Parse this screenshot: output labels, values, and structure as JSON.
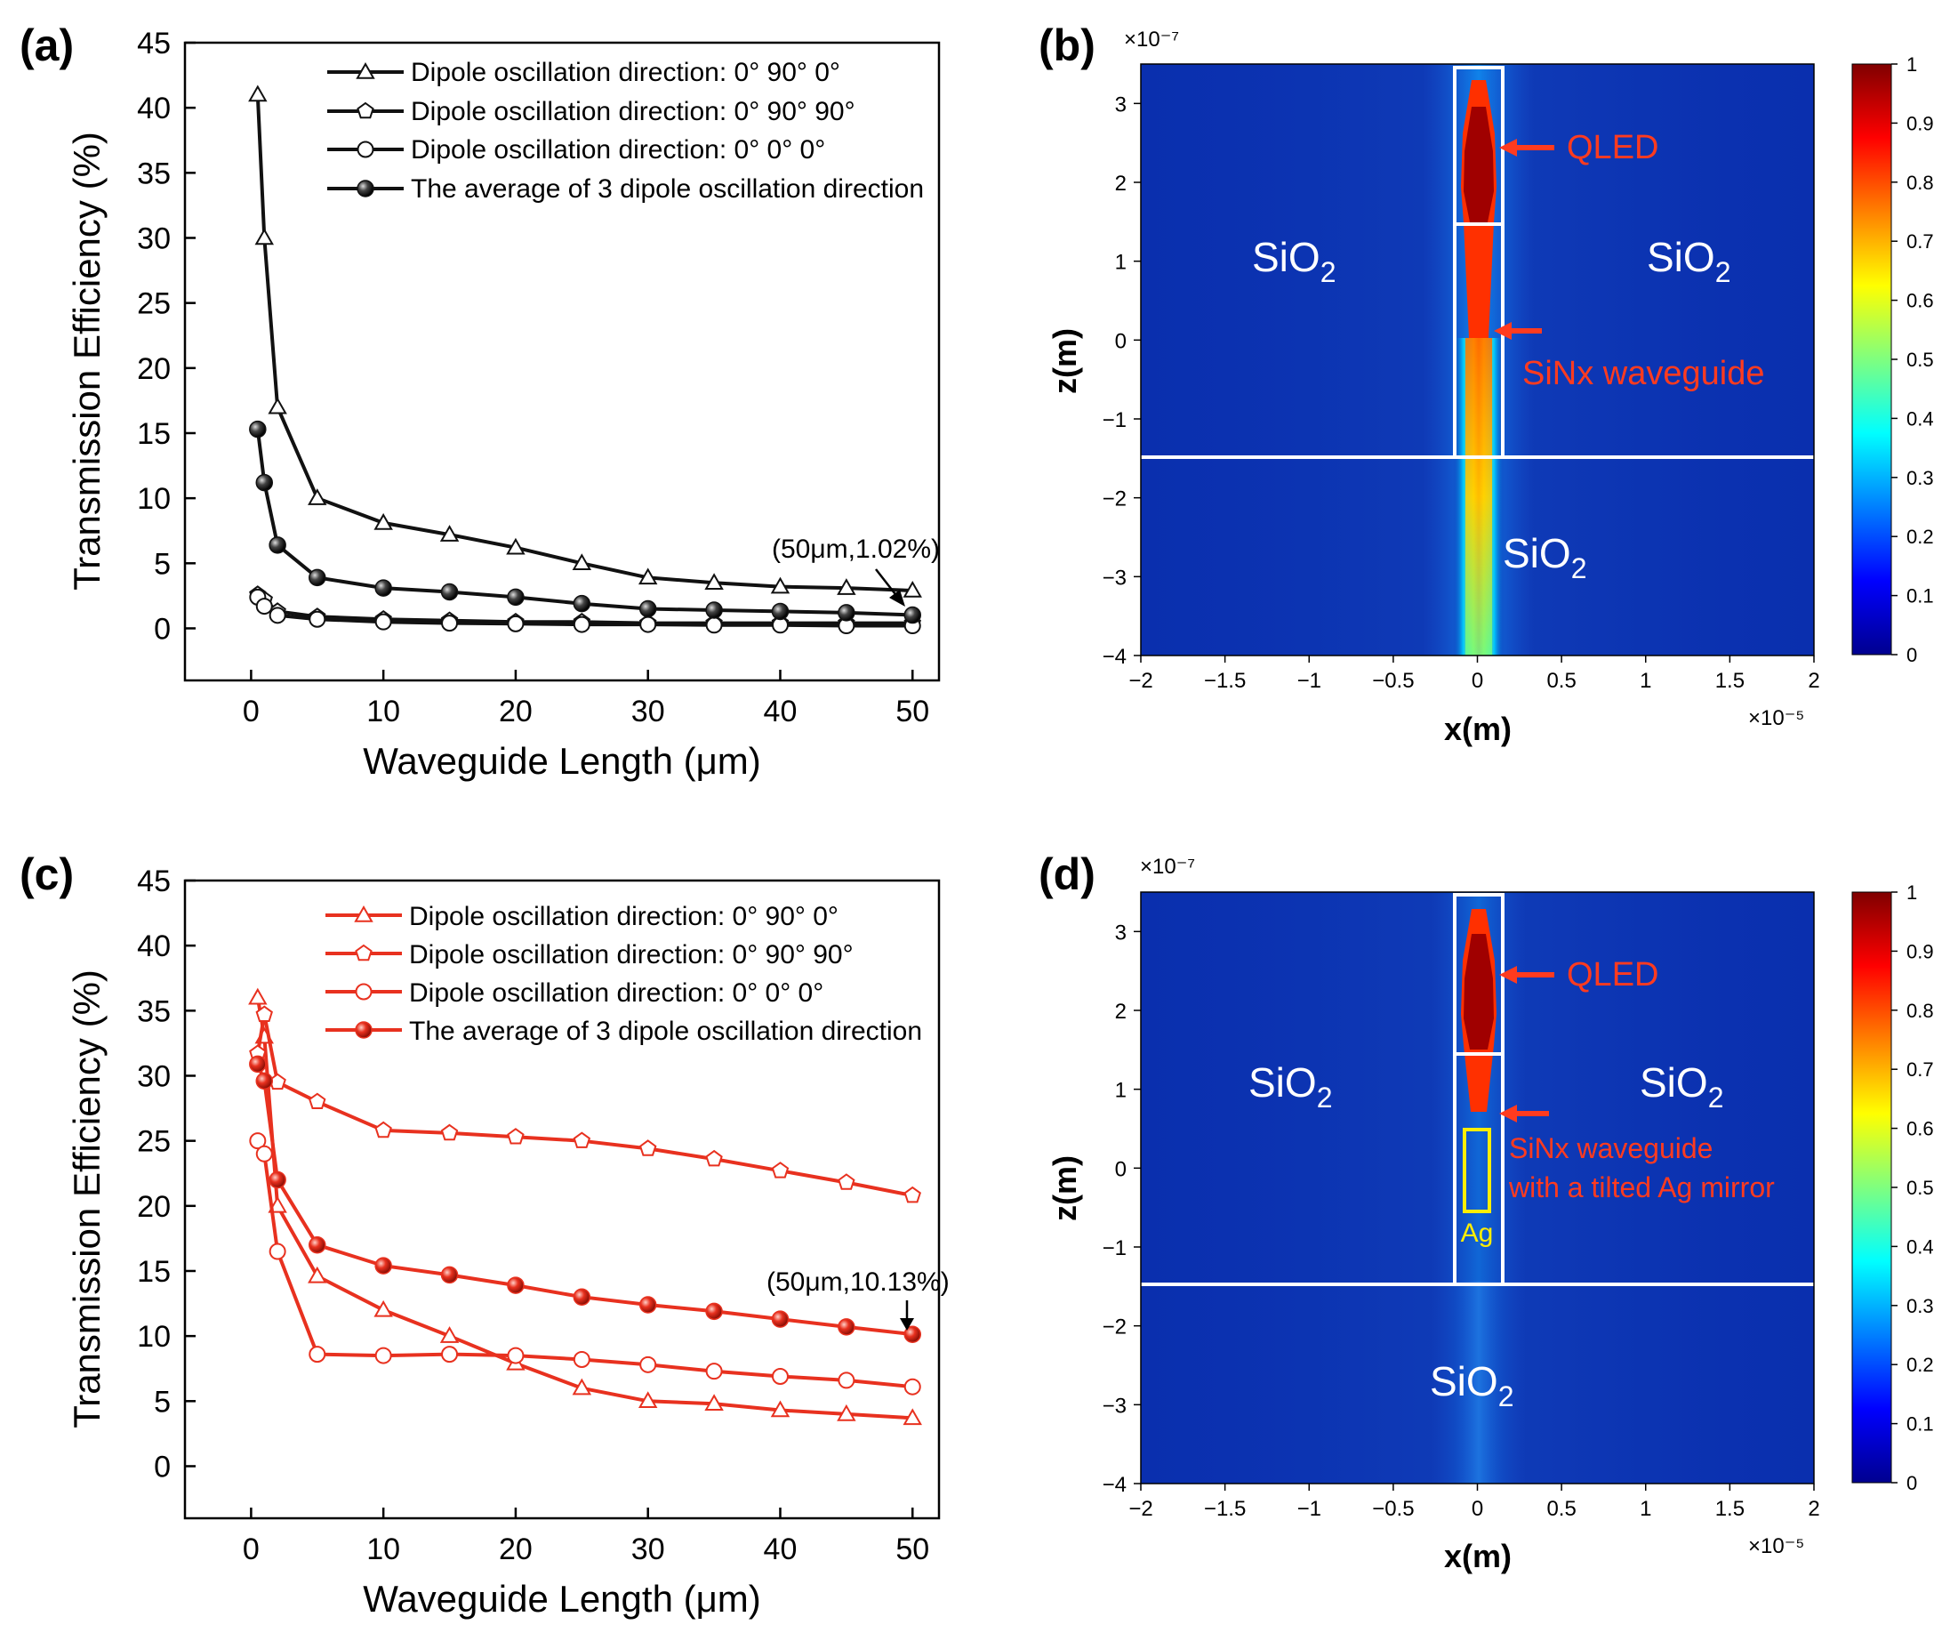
{
  "panel_labels": {
    "a": "(a)",
    "b": "(b)",
    "c": "(c)",
    "d": "(d)"
  },
  "colors": {
    "black_series": "#111111",
    "red_series": "#e8311f",
    "map_bg": "#0a2fae",
    "callout": "#ff3b1f",
    "ag_box": "#ffee00"
  },
  "chart_data": [
    {
      "id": "a",
      "type": "line",
      "xlabel": "Waveguide Length (μm)",
      "ylabel": "Transmission Efficiency (%)",
      "xlim": [
        -5,
        52
      ],
      "ylim": [
        -4,
        45
      ],
      "xticks": [
        0,
        10,
        20,
        30,
        40,
        50
      ],
      "yticks": [
        0,
        5,
        10,
        15,
        20,
        25,
        30,
        35,
        40,
        45
      ],
      "x": [
        0.5,
        1,
        2,
        5,
        10,
        15,
        20,
        25,
        30,
        35,
        40,
        45,
        50
      ],
      "series": [
        {
          "name": "Dipole oscillation direction: 0° 90° 0°",
          "marker": "triangle",
          "values": [
            41,
            30,
            17,
            10,
            8.1,
            7.2,
            6.2,
            5,
            3.9,
            3.5,
            3.2,
            3.1,
            2.9
          ]
        },
        {
          "name": "Dipole oscillation direction: 0° 90° 90°",
          "marker": "pentagon",
          "values": [
            2.6,
            2.2,
            1.3,
            0.9,
            0.7,
            0.6,
            0.5,
            0.5,
            0.4,
            0.4,
            0.4,
            0.4,
            0.4
          ]
        },
        {
          "name": "Dipole oscillation direction: 0° 0° 0°",
          "marker": "circle",
          "values": [
            2.4,
            1.7,
            1.0,
            0.7,
            0.5,
            0.4,
            0.35,
            0.3,
            0.3,
            0.25,
            0.25,
            0.2,
            0.2
          ]
        },
        {
          "name": "The average of 3 dipole oscillation direction",
          "marker": "sphere",
          "values": [
            15.3,
            11.2,
            6.4,
            3.9,
            3.1,
            2.8,
            2.4,
            1.9,
            1.5,
            1.4,
            1.3,
            1.2,
            1.02
          ]
        }
      ],
      "annotation": "(50μm,1.02%)"
    },
    {
      "id": "c",
      "type": "line",
      "xlabel": "Waveguide Length (μm)",
      "ylabel": "Transmission Efficiency (%)",
      "xlim": [
        -5,
        52
      ],
      "ylim": [
        -4,
        45
      ],
      "xticks": [
        0,
        10,
        20,
        30,
        40,
        50
      ],
      "yticks": [
        0,
        5,
        10,
        15,
        20,
        25,
        30,
        35,
        40,
        45
      ],
      "x": [
        0.5,
        1,
        2,
        5,
        10,
        15,
        20,
        25,
        30,
        35,
        40,
        45,
        50
      ],
      "series": [
        {
          "name": "Dipole oscillation direction: 0° 90° 0°",
          "marker": "triangle",
          "values": [
            36,
            33,
            20,
            14.6,
            12,
            10,
            7.9,
            6,
            5,
            4.8,
            4.3,
            4,
            3.7
          ]
        },
        {
          "name": "Dipole oscillation direction: 0° 90° 90°",
          "marker": "pentagon",
          "values": [
            31.7,
            34.7,
            29.5,
            28,
            25.8,
            25.6,
            25.3,
            25,
            24.4,
            23.6,
            22.7,
            21.8,
            20.8
          ]
        },
        {
          "name": "Dipole oscillation direction: 0° 0° 0°",
          "marker": "circle",
          "values": [
            25,
            24,
            16.5,
            8.6,
            8.5,
            8.6,
            8.5,
            8.2,
            7.8,
            7.3,
            6.9,
            6.6,
            6.1
          ]
        },
        {
          "name": "The average of 3 dipole oscillation direction",
          "marker": "sphere",
          "values": [
            30.9,
            29.6,
            22,
            17,
            15.4,
            14.7,
            13.9,
            13,
            12.4,
            11.9,
            11.3,
            10.7,
            10.13
          ]
        }
      ],
      "annotation": "(50μm,10.13%)"
    },
    {
      "id": "b",
      "type": "heatmap",
      "xlabel": "x(m)",
      "ylabel": "z(m)",
      "x_exponent": "×10⁻⁵",
      "y_exponent": "×10⁻⁷",
      "xlim": [
        -2,
        2
      ],
      "ylim": [
        -4,
        3.5
      ],
      "xticks": [
        "−2",
        "−1.5",
        "−1",
        "−0.5",
        "0",
        "0.5",
        "1",
        "1.5",
        "2"
      ],
      "yticks": [
        "3",
        "2",
        "1",
        "0",
        "−1",
        "−2",
        "−3",
        "−4"
      ],
      "colorbar_ticks": [
        "1",
        "0.9",
        "0.8",
        "0.7",
        "0.6",
        "0.5",
        "0.4",
        "0.3",
        "0.2",
        "0.1",
        "0"
      ],
      "labels": {
        "sio2_left": "SiO",
        "sio2_right": "SiO",
        "sio2_bottom": "SiO",
        "sub": "2",
        "qled": "QLED",
        "waveguide": "SiNx waveguide"
      }
    },
    {
      "id": "d",
      "type": "heatmap",
      "xlabel": "x(m)",
      "ylabel": "z(m)",
      "x_exponent": "×10⁻⁵",
      "y_exponent": "×10⁻⁷",
      "xlim": [
        -2,
        2
      ],
      "ylim": [
        -4,
        3.5
      ],
      "xticks": [
        "−2",
        "−1.5",
        "−1",
        "−0.5",
        "0",
        "0.5",
        "1",
        "1.5",
        "2"
      ],
      "yticks": [
        "3",
        "2",
        "1",
        "0",
        "−1",
        "−2",
        "−3",
        "−4"
      ],
      "colorbar_ticks": [
        "1",
        "0.9",
        "0.8",
        "0.7",
        "0.6",
        "0.5",
        "0.4",
        "0.3",
        "0.2",
        "0.1",
        "0"
      ],
      "labels": {
        "sio2_left": "SiO",
        "sio2_right": "SiO",
        "sio2_bottom": "SiO",
        "sub": "2",
        "qled": "QLED",
        "waveguide_1": "SiNx waveguide",
        "waveguide_2": "with a tilted Ag mirror",
        "ag": "Ag"
      }
    }
  ]
}
